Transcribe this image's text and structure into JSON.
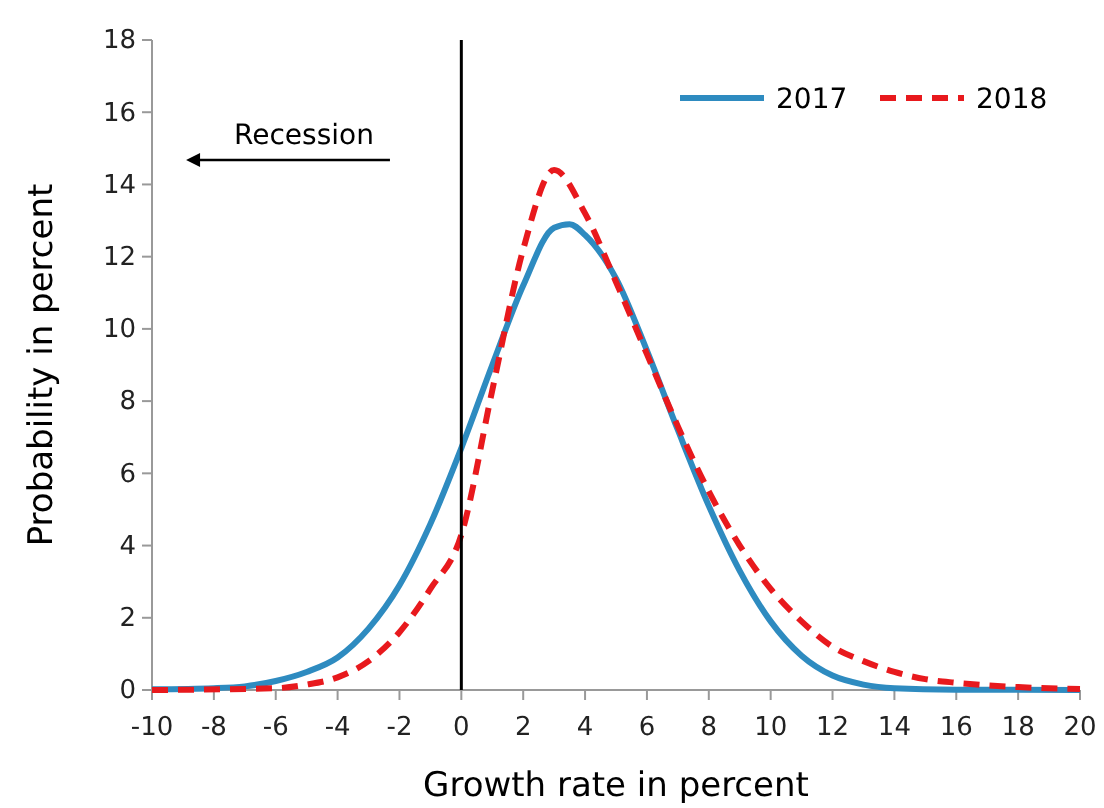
{
  "chart_data": {
    "type": "line",
    "xlabel": "Growth rate in percent",
    "ylabel": "Probability in percent",
    "xlim": [
      -10,
      20
    ],
    "xticks": [
      -10,
      -8,
      -6,
      -4,
      -2,
      0,
      2,
      4,
      6,
      8,
      10,
      12,
      14,
      16,
      18,
      20
    ],
    "ylim": [
      0,
      18
    ],
    "yticks": [
      0,
      2,
      4,
      6,
      8,
      10,
      12,
      14,
      16,
      18
    ],
    "grid": false,
    "legend": "top right",
    "marker": "none",
    "ref_lines": [
      {
        "axis": "x",
        "value": 0,
        "color": "#000000"
      }
    ],
    "annotations": [
      "Recession"
    ],
    "series": [
      {
        "name": "2017",
        "color": "#2e8bc0",
        "line_style": "solid",
        "x": [
          -10,
          -8,
          -7,
          -6,
          -5,
          -4,
          -3,
          -2,
          -1,
          0,
          1,
          2,
          3,
          3.5,
          4,
          5,
          6,
          7,
          8,
          9,
          10,
          11,
          12,
          13,
          14,
          16,
          20
        ],
        "values": [
          0.02,
          0.05,
          0.1,
          0.25,
          0.5,
          0.9,
          1.7,
          2.9,
          4.6,
          6.7,
          9.0,
          11.2,
          12.8,
          12.9,
          12.6,
          11.4,
          9.4,
          7.2,
          5.1,
          3.3,
          1.9,
          0.95,
          0.4,
          0.15,
          0.05,
          0.01,
          0
        ]
      },
      {
        "name": "2018",
        "color": "#e8191d",
        "line_style": "dashed",
        "x": [
          -10,
          -6,
          -5,
          -4,
          -3,
          -2,
          -1,
          0,
          1,
          2,
          3,
          4,
          5,
          6,
          7,
          8,
          9,
          10,
          11,
          12,
          13,
          14,
          15,
          16,
          18,
          20
        ],
        "values": [
          0,
          0.05,
          0.15,
          0.35,
          0.8,
          1.6,
          2.8,
          4.3,
          8.3,
          12.2,
          14.4,
          13.2,
          11.3,
          9.3,
          7.3,
          5.5,
          4.0,
          2.8,
          1.9,
          1.2,
          0.8,
          0.5,
          0.3,
          0.2,
          0.08,
          0.03
        ]
      }
    ]
  }
}
